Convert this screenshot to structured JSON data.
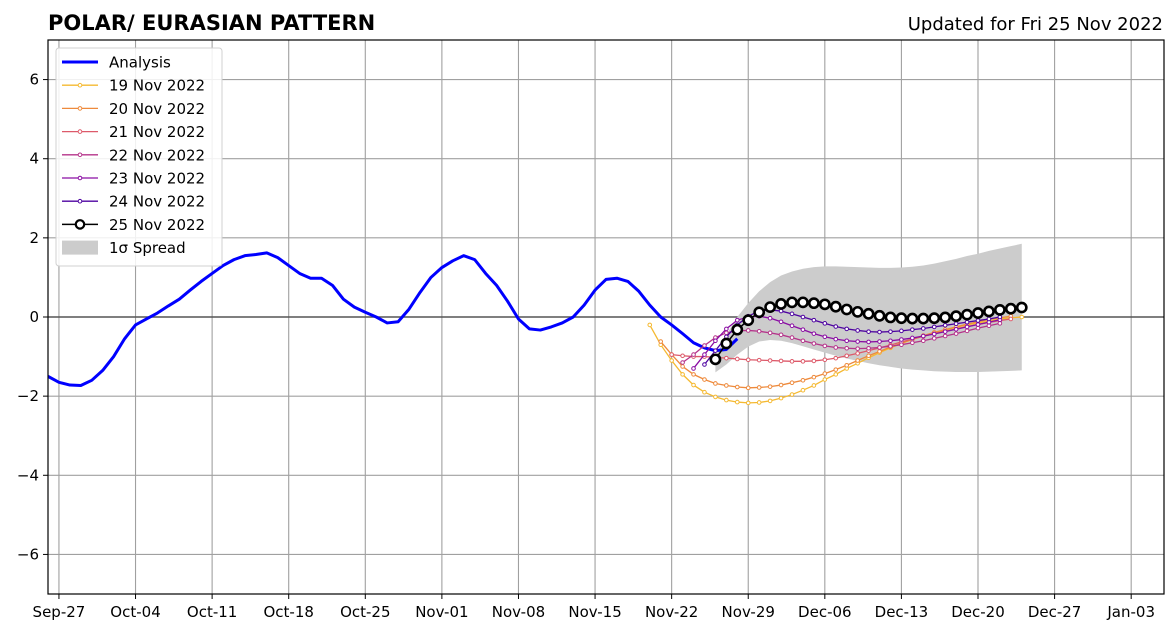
{
  "chart_data": {
    "type": "line",
    "title": "POLAR/ EURASIAN  PATTERN",
    "subtitle": "Updated for Fri 25 Nov 2022",
    "xlabel": "",
    "ylabel": "",
    "x_axis": {
      "type": "date",
      "range": [
        "2022-09-26",
        "2023-01-06"
      ],
      "ticks": [
        {
          "date": "2022-09-27",
          "label": "Sep-27"
        },
        {
          "date": "2022-10-04",
          "label": "Oct-04"
        },
        {
          "date": "2022-10-11",
          "label": "Oct-11"
        },
        {
          "date": "2022-10-18",
          "label": "Oct-18"
        },
        {
          "date": "2022-10-25",
          "label": "Oct-25"
        },
        {
          "date": "2022-11-01",
          "label": "Nov-01"
        },
        {
          "date": "2022-11-08",
          "label": "Nov-08"
        },
        {
          "date": "2022-11-15",
          "label": "Nov-15"
        },
        {
          "date": "2022-11-22",
          "label": "Nov-22"
        },
        {
          "date": "2022-11-29",
          "label": "Nov-29"
        },
        {
          "date": "2022-12-06",
          "label": "Dec-06"
        },
        {
          "date": "2022-12-13",
          "label": "Dec-13"
        },
        {
          "date": "2022-12-20",
          "label": "Dec-20"
        },
        {
          "date": "2022-12-27",
          "label": "Dec-27"
        },
        {
          "date": "2023-01-03",
          "label": "Jan-03"
        }
      ]
    },
    "y_axis": {
      "range": [
        -7,
        7
      ],
      "ticks": [
        -6,
        -4,
        -2,
        0,
        2,
        4,
        6
      ],
      "tick_labels": [
        "−6",
        "−4",
        "−2",
        "0",
        "2",
        "4",
        "6"
      ]
    },
    "grid": true,
    "zero_line": true,
    "legend_position": "upper-left",
    "legend": [
      "Analysis",
      "19 Nov 2022",
      "20 Nov 2022",
      "21 Nov 2022",
      "22 Nov 2022",
      "23 Nov 2022",
      "24 Nov 2022",
      "25 Nov 2022",
      "1σ Spread"
    ],
    "analysis": {
      "name": "Analysis",
      "color": "#0000ff",
      "start_date": "2022-09-26",
      "values": [
        -1.5,
        -1.65,
        -1.72,
        -1.73,
        -1.6,
        -1.35,
        -1.0,
        -0.55,
        -0.2,
        -0.05,
        0.1,
        0.28,
        0.45,
        0.68,
        0.9,
        1.1,
        1.3,
        1.45,
        1.55,
        1.58,
        1.62,
        1.5,
        1.3,
        1.1,
        0.98,
        0.98,
        0.8,
        0.45,
        0.25,
        0.12,
        0.0,
        -0.15,
        -0.12,
        0.2,
        0.62,
        1.0,
        1.25,
        1.42,
        1.55,
        1.45,
        1.1,
        0.8,
        0.4,
        -0.05,
        -0.3,
        -0.33,
        -0.25,
        -0.15,
        0.0,
        0.3,
        0.68,
        0.95,
        0.98,
        0.9,
        0.65,
        0.3,
        0.0,
        -0.2,
        -0.42,
        -0.65,
        -0.78,
        -0.85,
        -0.82,
        -0.55
      ]
    },
    "forecasts": [
      {
        "name": "19 Nov 2022",
        "color": "#f5b931",
        "start_date": "2022-11-20",
        "values": [
          -0.2,
          -0.7,
          -1.1,
          -1.45,
          -1.72,
          -1.9,
          -2.02,
          -2.1,
          -2.15,
          -2.17,
          -2.16,
          -2.12,
          -2.05,
          -1.96,
          -1.85,
          -1.73,
          -1.58,
          -1.45,
          -1.3,
          -1.17,
          -1.03,
          -0.9,
          -0.78,
          -0.67,
          -0.57,
          -0.48,
          -0.4,
          -0.33,
          -0.26,
          -0.2,
          -0.15,
          -0.1,
          -0.05,
          -0.02,
          0.0
        ]
      },
      {
        "name": "20 Nov 2022",
        "color": "#ee8a3c",
        "start_date": "2022-11-21",
        "values": [
          -0.62,
          -0.95,
          -1.25,
          -1.45,
          -1.58,
          -1.68,
          -1.73,
          -1.77,
          -1.79,
          -1.78,
          -1.76,
          -1.72,
          -1.66,
          -1.6,
          -1.52,
          -1.43,
          -1.33,
          -1.22,
          -1.1,
          -0.98,
          -0.87,
          -0.76,
          -0.66,
          -0.56,
          -0.47,
          -0.39,
          -0.32,
          -0.25,
          -0.18,
          -0.12,
          -0.06,
          -0.02,
          0.02
        ]
      },
      {
        "name": "21 Nov 2022",
        "color": "#dd5a6a",
        "start_date": "2022-11-22",
        "values": [
          -0.95,
          -0.98,
          -1.0,
          -1.0,
          -1.02,
          -1.04,
          -1.06,
          -1.08,
          -1.09,
          -1.1,
          -1.11,
          -1.12,
          -1.12,
          -1.11,
          -1.08,
          -1.04,
          -0.98,
          -0.92,
          -0.85,
          -0.78,
          -0.71,
          -0.63,
          -0.56,
          -0.49,
          -0.42,
          -0.36,
          -0.3,
          -0.24,
          -0.19,
          -0.14,
          -0.09,
          -0.05
        ]
      },
      {
        "name": "22 Nov 2022",
        "color": "#b5338a",
        "start_date": "2022-11-23",
        "values": [
          -1.15,
          -0.95,
          -0.72,
          -0.52,
          -0.4,
          -0.35,
          -0.34,
          -0.36,
          -0.4,
          -0.45,
          -0.52,
          -0.6,
          -0.67,
          -0.73,
          -0.77,
          -0.79,
          -0.8,
          -0.79,
          -0.77,
          -0.74,
          -0.7,
          -0.65,
          -0.6,
          -0.54,
          -0.48,
          -0.42,
          -0.35,
          -0.28,
          -0.22,
          -0.16
        ]
      },
      {
        "name": "23 Nov 2022",
        "color": "#8a0da3",
        "start_date": "2022-11-24",
        "values": [
          -1.3,
          -0.95,
          -0.6,
          -0.3,
          -0.08,
          0.0,
          0.02,
          -0.03,
          -0.12,
          -0.22,
          -0.32,
          -0.42,
          -0.5,
          -0.56,
          -0.6,
          -0.62,
          -0.63,
          -0.62,
          -0.6,
          -0.57,
          -0.53,
          -0.48,
          -0.43,
          -0.37,
          -0.31,
          -0.25,
          -0.19,
          -0.13,
          -0.07
        ]
      },
      {
        "name": "24 Nov 2022",
        "color": "#4d02a0",
        "start_date": "2022-11-25",
        "values": [
          -1.2,
          -0.85,
          -0.5,
          -0.2,
          0.02,
          0.15,
          0.18,
          0.15,
          0.08,
          0.0,
          -0.08,
          -0.16,
          -0.24,
          -0.3,
          -0.34,
          -0.37,
          -0.38,
          -0.37,
          -0.35,
          -0.32,
          -0.29,
          -0.25,
          -0.21,
          -0.17,
          -0.13,
          -0.09,
          -0.05,
          0.0
        ]
      },
      {
        "name": "25 Nov 2022",
        "color": "#000000",
        "start_date": "2022-11-26",
        "values": [
          -1.07,
          -0.67,
          -0.32,
          -0.08,
          0.12,
          0.25,
          0.33,
          0.37,
          0.37,
          0.35,
          0.32,
          0.26,
          0.19,
          0.13,
          0.08,
          0.03,
          -0.01,
          -0.03,
          -0.04,
          -0.04,
          -0.03,
          -0.01,
          0.02,
          0.06,
          0.1,
          0.14,
          0.18,
          0.21,
          0.24
        ]
      }
    ],
    "spread": {
      "name": "1σ Spread",
      "color": "#cccccc",
      "start_date": "2022-11-26",
      "upper": [
        -1.0,
        -0.45,
        0.0,
        0.35,
        0.65,
        0.88,
        1.05,
        1.15,
        1.22,
        1.26,
        1.28,
        1.28,
        1.27,
        1.26,
        1.25,
        1.24,
        1.24,
        1.25,
        1.27,
        1.3,
        1.35,
        1.41,
        1.47,
        1.54,
        1.6,
        1.67,
        1.73,
        1.79,
        1.85
      ],
      "lower": [
        -1.4,
        -1.2,
        -0.95,
        -0.75,
        -0.62,
        -0.58,
        -0.6,
        -0.66,
        -0.74,
        -0.82,
        -0.9,
        -0.98,
        -1.05,
        -1.11,
        -1.17,
        -1.22,
        -1.26,
        -1.3,
        -1.33,
        -1.35,
        -1.37,
        -1.38,
        -1.39,
        -1.39,
        -1.39,
        -1.38,
        -1.37,
        -1.36,
        -1.35
      ]
    }
  }
}
